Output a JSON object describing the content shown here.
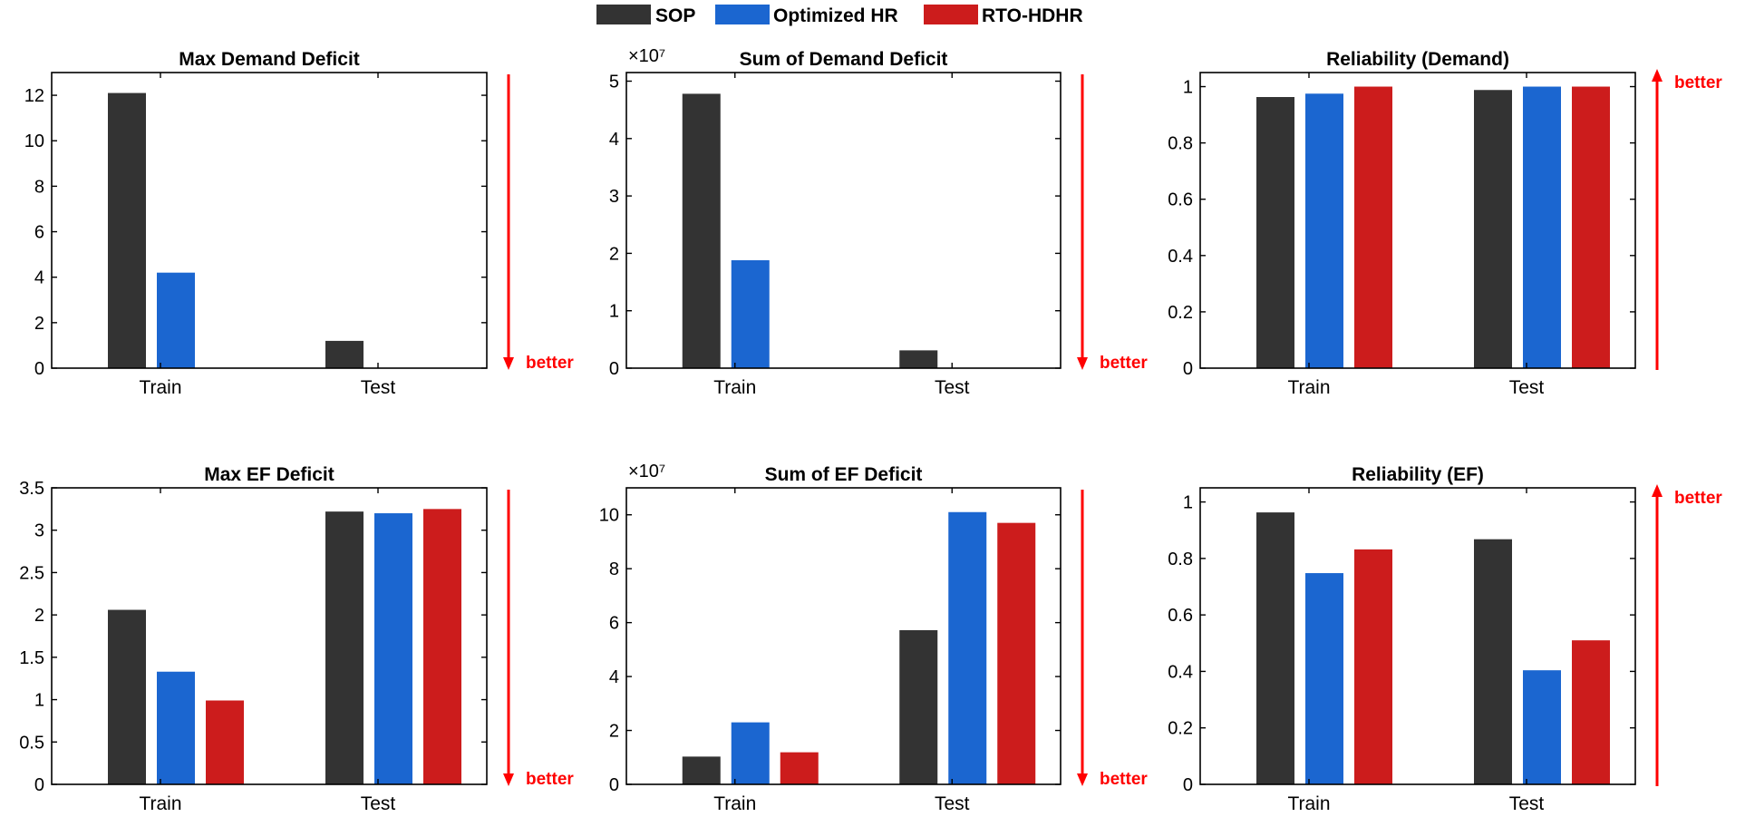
{
  "legend": [
    {
      "name": "SOP",
      "color": "#333333"
    },
    {
      "name": "Optimized HR",
      "color": "#1b66d0"
    },
    {
      "name": "RTO-HDHR",
      "color": "#cc1c1c"
    }
  ],
  "better_label": "better",
  "arrow_color": "#ff0000",
  "chart_data": [
    {
      "type": "bar",
      "title": "Max Demand Deficit",
      "categories": [
        "Train",
        "Test"
      ],
      "series": [
        {
          "name": "SOP",
          "values": [
            12.1,
            1.2
          ]
        },
        {
          "name": "Optimized HR",
          "values": [
            4.2,
            0
          ]
        },
        {
          "name": "RTO-HDHR",
          "values": [
            0,
            0
          ]
        }
      ],
      "ylim": [
        0,
        13
      ],
      "yticks": [
        0,
        2,
        4,
        6,
        8,
        10,
        12
      ],
      "ytick_labels": [
        "0",
        "2",
        "4",
        "6",
        "8",
        "10",
        "12"
      ],
      "exponent_label": "",
      "better": "down"
    },
    {
      "type": "bar",
      "title": "Sum of Demand Deficit",
      "categories": [
        "Train",
        "Test"
      ],
      "series": [
        {
          "name": "SOP",
          "values": [
            47800000,
            3100000
          ]
        },
        {
          "name": "Optimized HR",
          "values": [
            18800000,
            0
          ]
        },
        {
          "name": "RTO-HDHR",
          "values": [
            0,
            0
          ]
        }
      ],
      "ylim": [
        0,
        51500000
      ],
      "yticks": [
        0,
        10000000,
        20000000,
        30000000,
        40000000,
        50000000
      ],
      "ytick_labels": [
        "0",
        "1",
        "2",
        "3",
        "4",
        "5"
      ],
      "exponent_label": "×10⁷",
      "better": "down"
    },
    {
      "type": "bar",
      "title": "Reliability (Demand)",
      "categories": [
        "Train",
        "Test"
      ],
      "series": [
        {
          "name": "SOP",
          "values": [
            0.963,
            0.988
          ]
        },
        {
          "name": "Optimized HR",
          "values": [
            0.975,
            1.0
          ]
        },
        {
          "name": "RTO-HDHR",
          "values": [
            1.0,
            1.0
          ]
        }
      ],
      "ylim": [
        0,
        1.05
      ],
      "yticks": [
        0,
        0.2,
        0.4,
        0.6,
        0.8,
        1
      ],
      "ytick_labels": [
        "0",
        "0.2",
        "0.4",
        "0.6",
        "0.8",
        "1"
      ],
      "exponent_label": "",
      "better": "up"
    },
    {
      "type": "bar",
      "title": "Max EF Deficit",
      "categories": [
        "Train",
        "Test"
      ],
      "series": [
        {
          "name": "SOP",
          "values": [
            2.06,
            3.22
          ]
        },
        {
          "name": "Optimized HR",
          "values": [
            1.33,
            3.2
          ]
        },
        {
          "name": "RTO-HDHR",
          "values": [
            0.99,
            3.25
          ]
        }
      ],
      "ylim": [
        0,
        3.5
      ],
      "yticks": [
        0,
        0.5,
        1,
        1.5,
        2,
        2.5,
        3,
        3.5
      ],
      "ytick_labels": [
        "0",
        "0.5",
        "1",
        "1.5",
        "2",
        "2.5",
        "3",
        "3.5"
      ],
      "exponent_label": "",
      "better": "down"
    },
    {
      "type": "bar",
      "title": "Sum of EF Deficit",
      "categories": [
        "Train",
        "Test"
      ],
      "series": [
        {
          "name": "SOP",
          "values": [
            10300000,
            57200000
          ]
        },
        {
          "name": "Optimized HR",
          "values": [
            23000000,
            101000000
          ]
        },
        {
          "name": "RTO-HDHR",
          "values": [
            11900000,
            97000000
          ]
        }
      ],
      "ylim": [
        0,
        110000000
      ],
      "yticks": [
        0,
        20000000,
        40000000,
        60000000,
        80000000,
        100000000
      ],
      "ytick_labels": [
        "0",
        "2",
        "4",
        "6",
        "8",
        "10"
      ],
      "exponent_label": "×10⁷",
      "better": "down"
    },
    {
      "type": "bar",
      "title": "Reliability (EF)",
      "categories": [
        "Train",
        "Test"
      ],
      "series": [
        {
          "name": "SOP",
          "values": [
            0.963,
            0.868
          ]
        },
        {
          "name": "Optimized HR",
          "values": [
            0.748,
            0.404
          ]
        },
        {
          "name": "RTO-HDHR",
          "values": [
            0.832,
            0.51
          ]
        }
      ],
      "ylim": [
        0,
        1.05
      ],
      "yticks": [
        0,
        0.2,
        0.4,
        0.6,
        0.8,
        1
      ],
      "ytick_labels": [
        "0",
        "0.2",
        "0.4",
        "0.6",
        "0.8",
        "1"
      ],
      "exponent_label": "",
      "better": "up"
    }
  ]
}
